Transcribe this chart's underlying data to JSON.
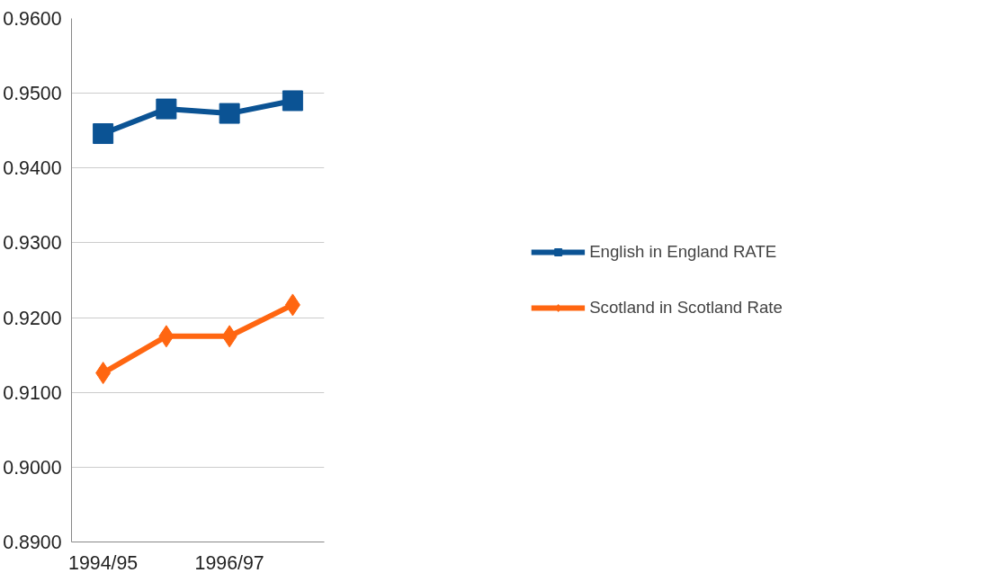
{
  "chart_data": {
    "type": "line",
    "categories": [
      "1994/95",
      null,
      "1996/97",
      null
    ],
    "series": [
      {
        "name": "English in England RATE",
        "color": "#0b5394",
        "marker": "square",
        "values": [
          0.9446,
          0.9479,
          0.9473,
          0.949
        ]
      },
      {
        "name": "Scotland in Scotland Rate",
        "color": "#ff6611",
        "marker": "diamond",
        "values": [
          0.9126,
          0.9175,
          0.9175,
          0.9217
        ]
      }
    ],
    "ylim": [
      0.89,
      0.96
    ],
    "yticks": [
      {
        "value": 0.89,
        "label": "0.8900"
      },
      {
        "value": 0.9,
        "label": "0.9000"
      },
      {
        "value": 0.91,
        "label": "0.9100"
      },
      {
        "value": 0.92,
        "label": "0.9200"
      },
      {
        "value": 0.93,
        "label": "0.9300"
      },
      {
        "value": 0.94,
        "label": "0.9400"
      },
      {
        "value": 0.95,
        "label": "0.9500"
      },
      {
        "value": 0.96,
        "label": "0.9600"
      }
    ],
    "grid": "y",
    "legend": "right",
    "line_style": "solid"
  }
}
